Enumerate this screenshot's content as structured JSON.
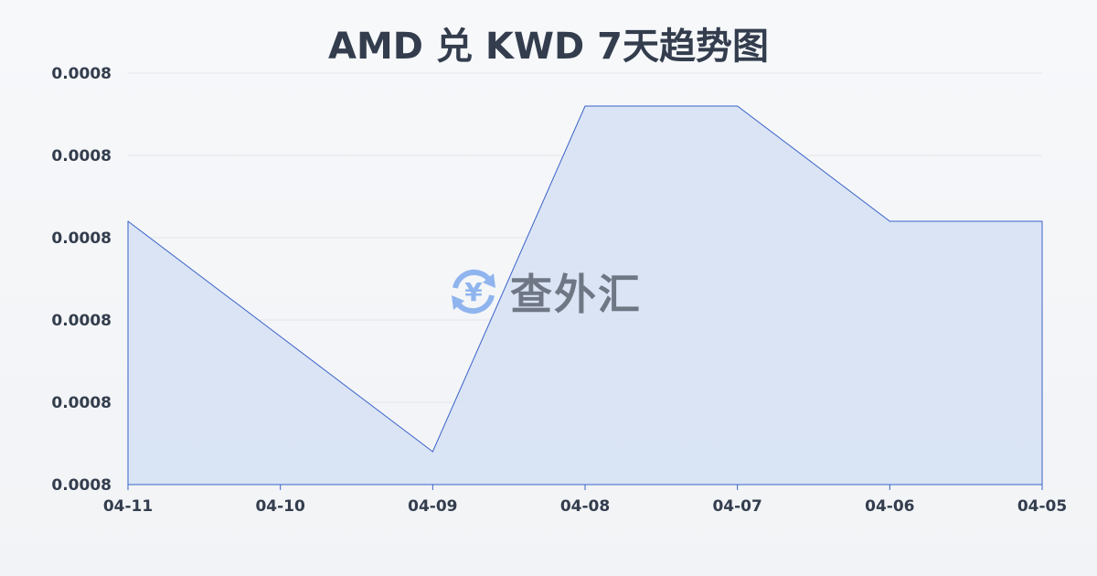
{
  "watermark": {
    "text": "查外汇",
    "icon": "yen-exchange-icon",
    "icon_color": "#8fb4ee"
  },
  "chart_data": {
    "type": "area",
    "title": "AMD 兑 KWD 7天趋势图",
    "categories": [
      "04-11",
      "04-10",
      "04-09",
      "04-08",
      "04-07",
      "04-06",
      "04-05"
    ],
    "values": [
      0.000812,
      0.000798,
      0.000784,
      0.000826,
      0.000826,
      0.000812,
      0.000812
    ],
    "ylim": [
      0.00078,
      0.00083
    ],
    "yticks": [
      0.00078,
      0.00079,
      0.0008,
      0.00081,
      0.00082,
      0.00083
    ],
    "ytick_labels": [
      "0.0008",
      "0.0008",
      "0.0008",
      "0.0008",
      "0.0008",
      "0.0008"
    ],
    "xlabel": "",
    "ylabel": "",
    "grid": true,
    "line_color": "#3a62c9",
    "fill_color": "#d5e0f5"
  }
}
